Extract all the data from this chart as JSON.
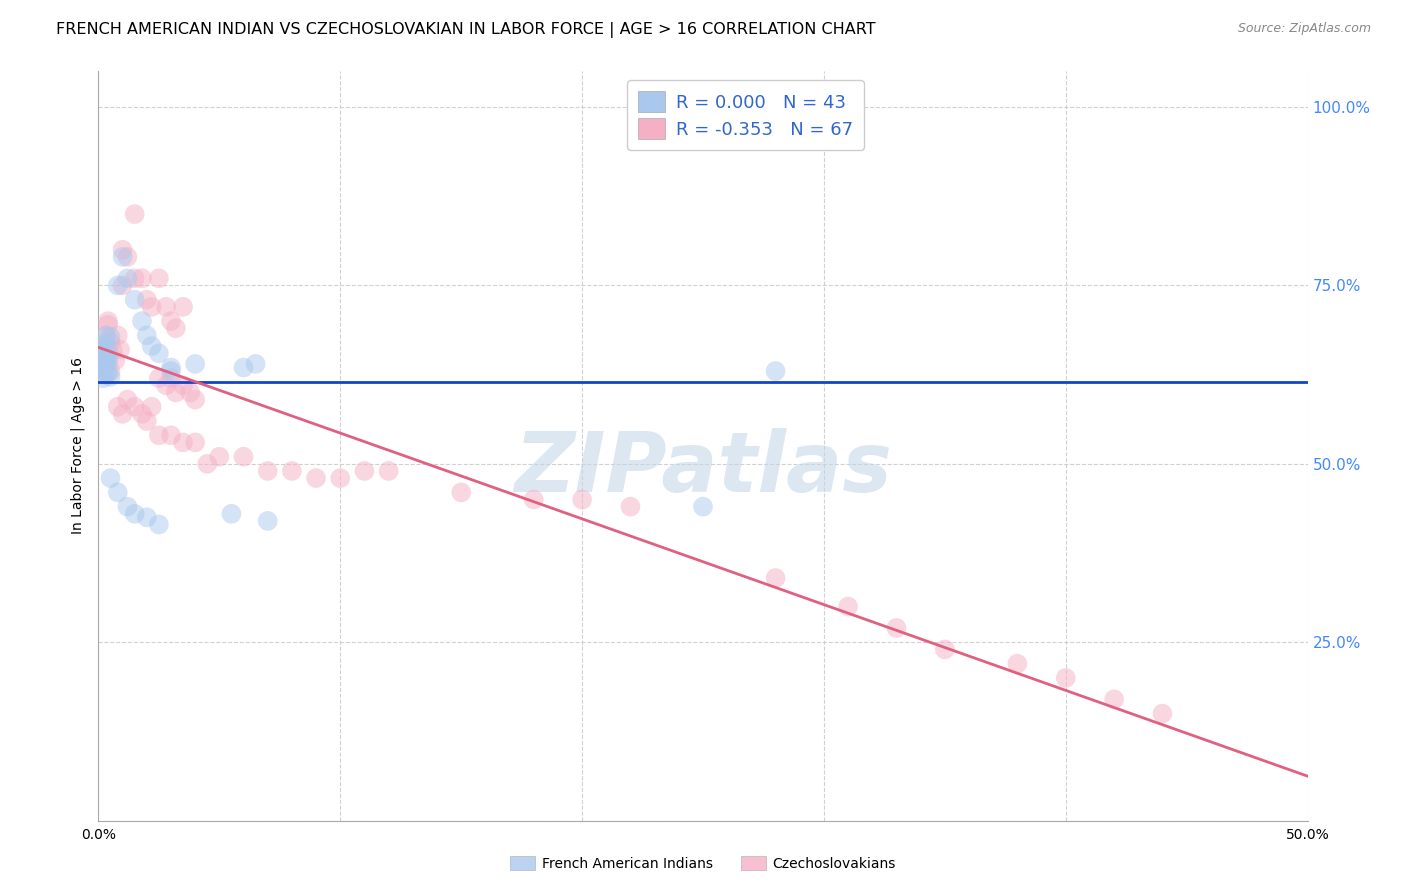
{
  "title": "FRENCH AMERICAN INDIAN VS CZECHOSLOVAKIAN IN LABOR FORCE | AGE > 16 CORRELATION CHART",
  "source": "Source: ZipAtlas.com",
  "ylabel": "In Labor Force | Age > 16",
  "xlim": [
    0.0,
    0.5
  ],
  "ylim": [
    0.0,
    1.05
  ],
  "ytick_positions": [
    0.0,
    0.25,
    0.5,
    0.75,
    1.0
  ],
  "yticklabels_right": [
    "",
    "25.0%",
    "50.0%",
    "75.0%",
    "100.0%"
  ],
  "xtick_positions": [
    0.0,
    0.1,
    0.2,
    0.3,
    0.4,
    0.5
  ],
  "xticklabels": [
    "0.0%",
    "",
    "",
    "",
    "",
    "50.0%"
  ],
  "R_blue": "0.000",
  "N_blue": "43",
  "R_pink": "-0.353",
  "N_pink": "67",
  "blue_fill": "#aac8ee",
  "pink_fill": "#f5b0c5",
  "blue_line_color": "#1144cc",
  "pink_line_color": "#e06080",
  "legend_text_color": "#3366cc",
  "right_tick_color": "#4488ff",
  "grid_color": "#cccccc",
  "background_color": "#ffffff",
  "watermark": "ZIPatlas",
  "watermark_color": "#c0d5e8",
  "watermark_alpha": 0.55,
  "watermark_fontsize": 60,
  "title_fontsize": 11.5,
  "source_fontsize": 9,
  "axis_label_fontsize": 10,
  "tick_fontsize": 10,
  "legend_fontsize": 13,
  "scatter_size": 200,
  "scatter_alpha": 0.5,
  "blue_x": [
    0.001,
    0.001,
    0.002,
    0.002,
    0.002,
    0.002,
    0.003,
    0.003,
    0.003,
    0.003,
    0.004,
    0.004,
    0.004,
    0.005,
    0.005,
    0.001,
    0.002,
    0.003,
    0.003,
    0.004,
    0.008,
    0.01,
    0.012,
    0.015,
    0.018,
    0.02,
    0.022,
    0.025,
    0.005,
    0.008,
    0.012,
    0.015,
    0.02,
    0.025,
    0.03,
    0.06,
    0.065,
    0.25,
    0.03,
    0.04,
    0.055,
    0.07,
    0.28
  ],
  "blue_y": [
    0.635,
    0.655,
    0.62,
    0.64,
    0.65,
    0.63,
    0.625,
    0.638,
    0.645,
    0.652,
    0.628,
    0.642,
    0.648,
    0.622,
    0.678,
    0.66,
    0.665,
    0.67,
    0.68,
    0.66,
    0.75,
    0.79,
    0.76,
    0.73,
    0.7,
    0.68,
    0.665,
    0.655,
    0.48,
    0.46,
    0.44,
    0.43,
    0.425,
    0.415,
    0.63,
    0.635,
    0.64,
    0.44,
    0.635,
    0.64,
    0.43,
    0.42,
    0.63
  ],
  "pink_x": [
    0.001,
    0.001,
    0.002,
    0.002,
    0.003,
    0.003,
    0.003,
    0.004,
    0.004,
    0.005,
    0.005,
    0.006,
    0.007,
    0.008,
    0.009,
    0.01,
    0.01,
    0.012,
    0.015,
    0.015,
    0.018,
    0.02,
    0.022,
    0.025,
    0.028,
    0.03,
    0.032,
    0.035,
    0.008,
    0.01,
    0.012,
    0.015,
    0.018,
    0.02,
    0.022,
    0.025,
    0.028,
    0.03,
    0.032,
    0.035,
    0.038,
    0.04,
    0.025,
    0.03,
    0.035,
    0.04,
    0.045,
    0.05,
    0.06,
    0.07,
    0.08,
    0.09,
    0.1,
    0.11,
    0.12,
    0.15,
    0.18,
    0.2,
    0.22,
    0.28,
    0.31,
    0.33,
    0.35,
    0.38,
    0.4,
    0.42,
    0.44
  ],
  "pink_y": [
    0.655,
    0.65,
    0.648,
    0.638,
    0.68,
    0.66,
    0.64,
    0.7,
    0.695,
    0.67,
    0.63,
    0.66,
    0.645,
    0.68,
    0.66,
    0.75,
    0.8,
    0.79,
    0.76,
    0.85,
    0.76,
    0.73,
    0.72,
    0.76,
    0.72,
    0.7,
    0.69,
    0.72,
    0.58,
    0.57,
    0.59,
    0.58,
    0.57,
    0.56,
    0.58,
    0.62,
    0.61,
    0.62,
    0.6,
    0.61,
    0.6,
    0.59,
    0.54,
    0.54,
    0.53,
    0.53,
    0.5,
    0.51,
    0.51,
    0.49,
    0.49,
    0.48,
    0.48,
    0.49,
    0.49,
    0.46,
    0.45,
    0.45,
    0.44,
    0.34,
    0.3,
    0.27,
    0.24,
    0.22,
    0.2,
    0.17,
    0.15
  ],
  "bottom_legend": [
    "French American Indians",
    "Czechoslovakians"
  ]
}
